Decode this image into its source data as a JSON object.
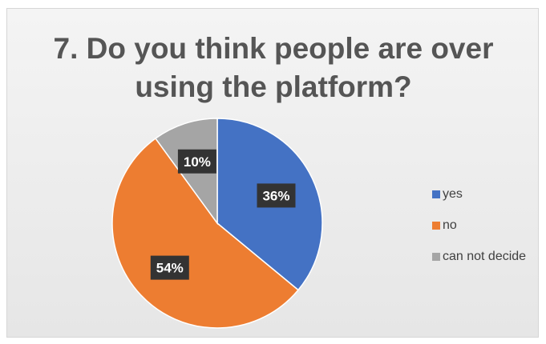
{
  "chart_data": {
    "type": "pie",
    "title_lines": [
      "7. Do you think people are over",
      "using the platform?"
    ],
    "categories": [
      "yes",
      "no",
      "can not decide"
    ],
    "values": [
      36,
      54,
      10
    ],
    "data_labels": [
      "36%",
      "54%",
      "10%"
    ],
    "colors": [
      "#4472c4",
      "#ed7d31",
      "#a5a5a5"
    ],
    "start_angle_deg": 0,
    "direction": "clockwise",
    "legend_position": "right"
  }
}
